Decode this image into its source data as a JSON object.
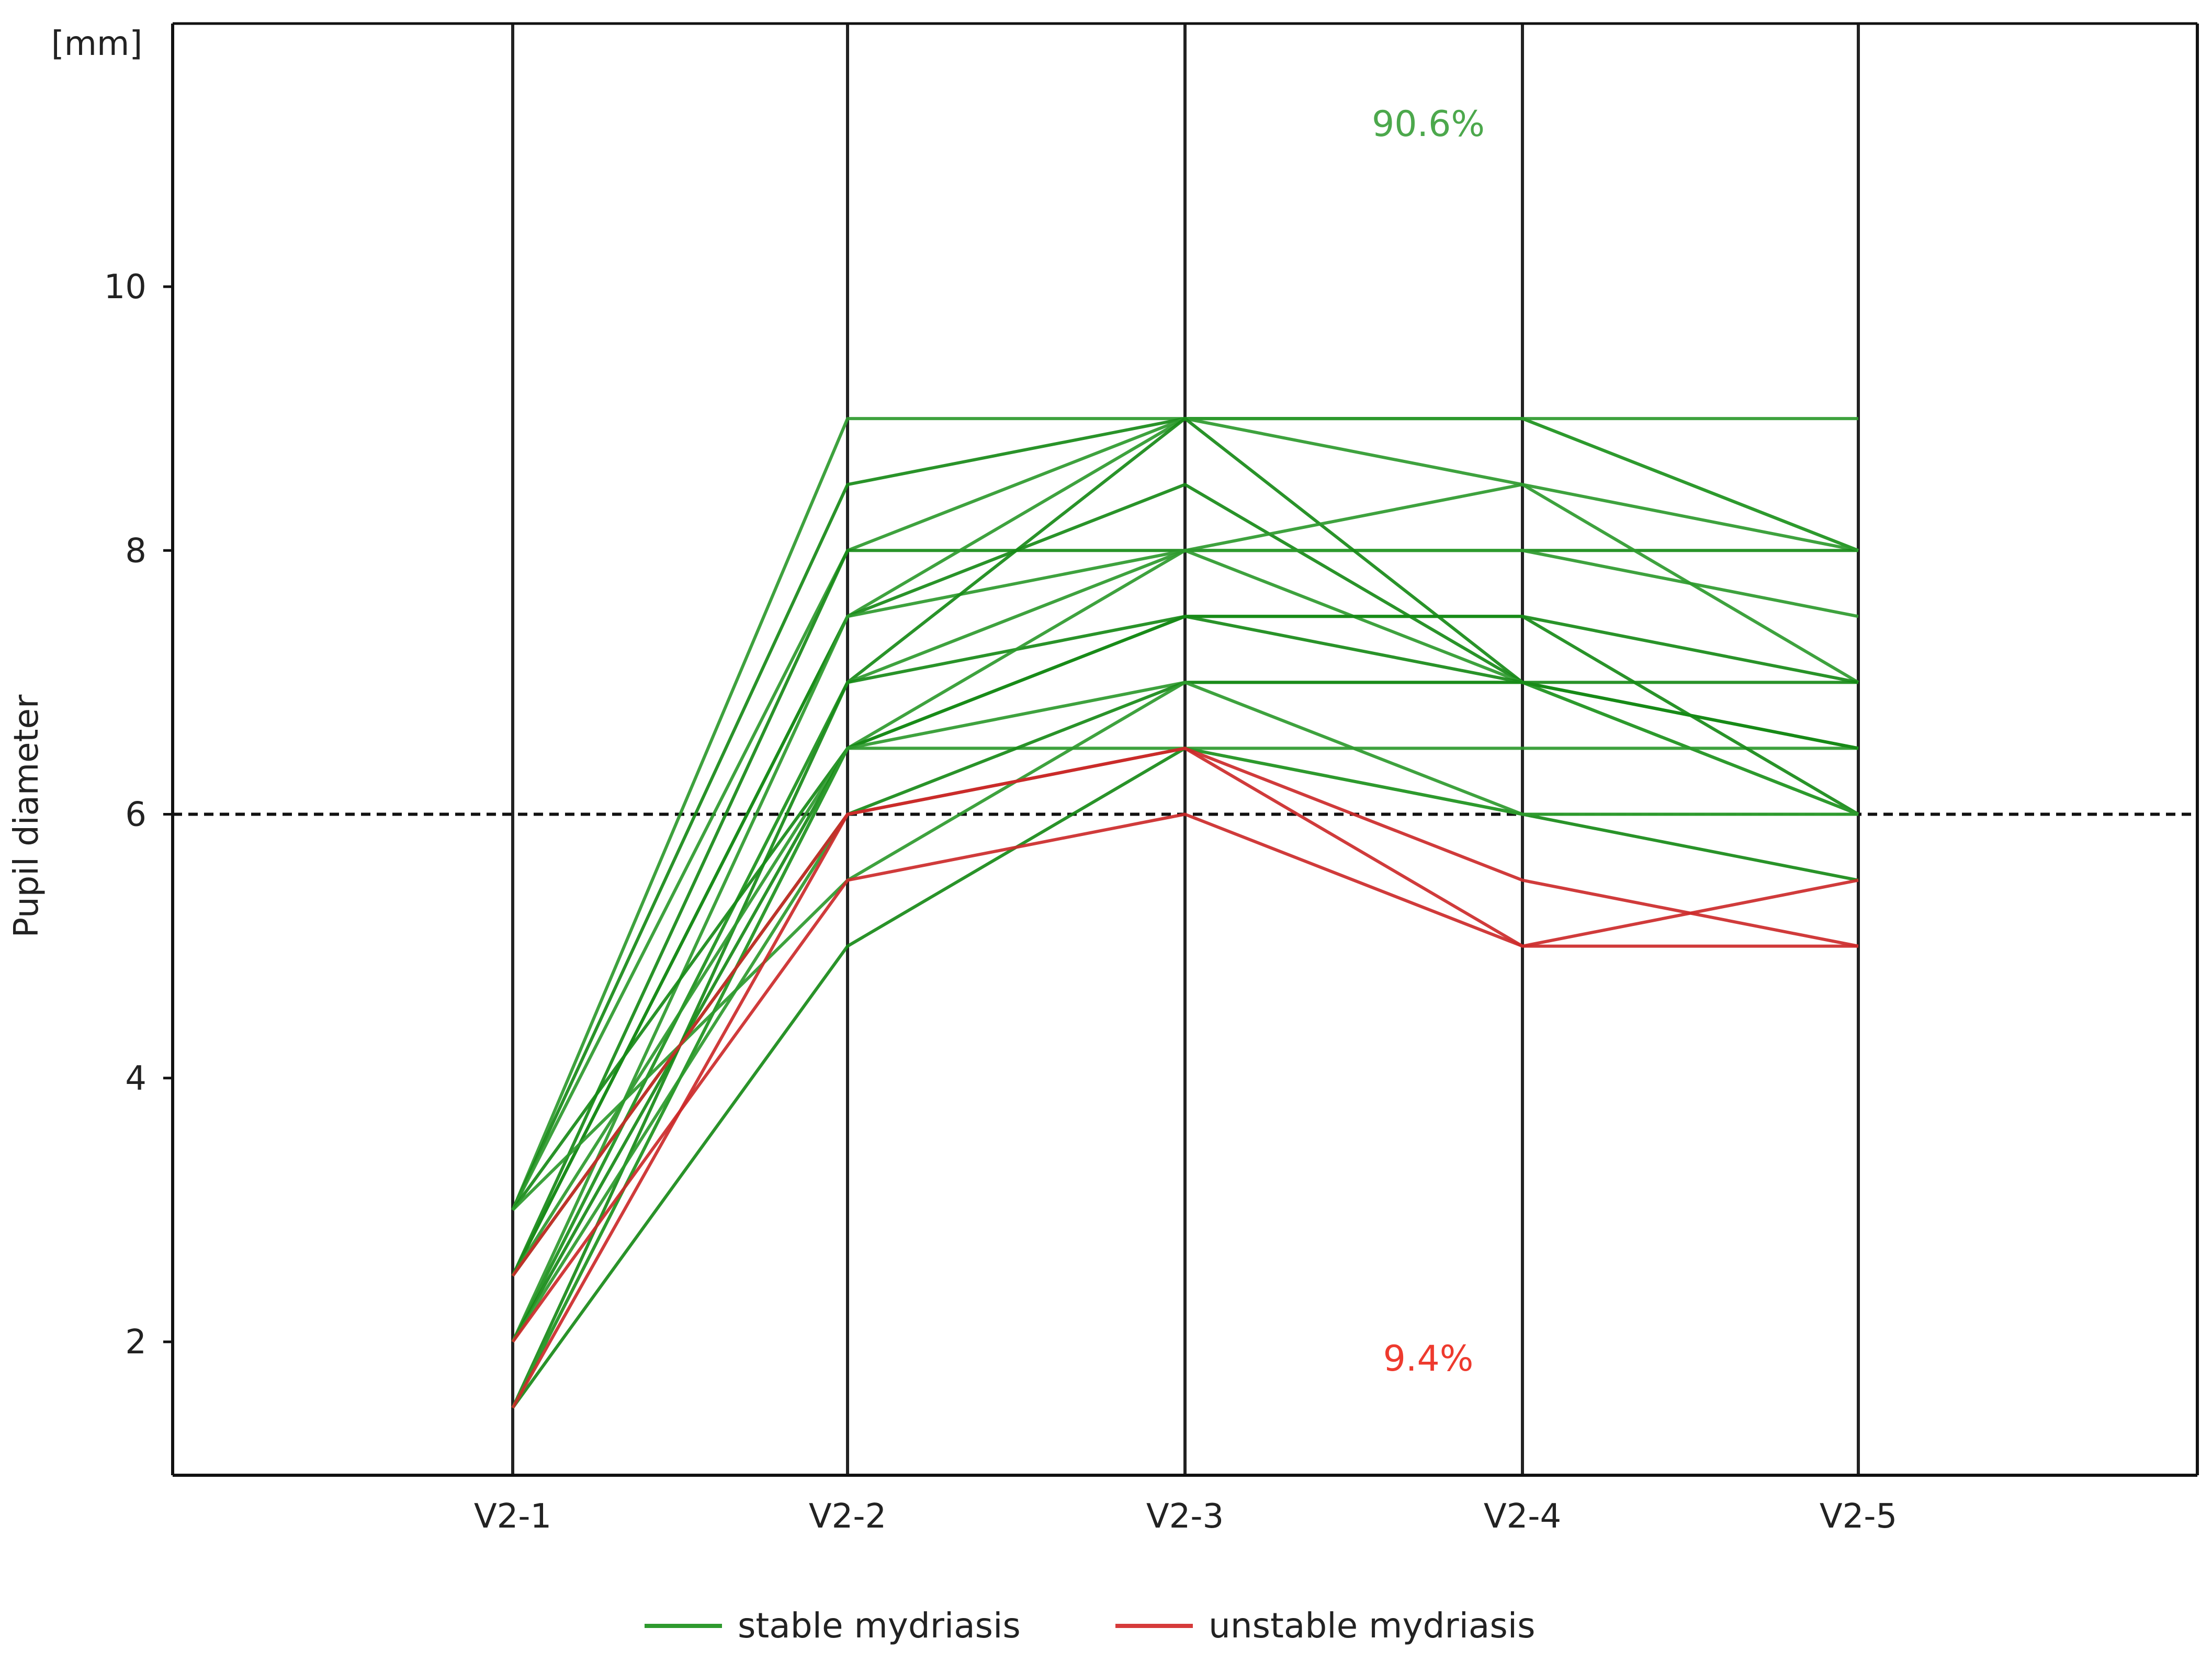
{
  "chart_data": {
    "type": "line",
    "title": "",
    "ylabel": "Pupil diameter",
    "yunit": "[mm]",
    "ylim": [
      1,
      12
    ],
    "yticks": [
      "2",
      "4",
      "6",
      "8",
      "10"
    ],
    "categories": [
      "V2-1",
      "V2-2",
      "V2-3",
      "V2-4",
      "V2-5"
    ],
    "threshold": 6,
    "annotations": {
      "stable_pct": "90.6%",
      "unstable_pct": "9.4%"
    },
    "legend": [
      {
        "label": "stable mydriasis",
        "color": "#2e9a2e"
      },
      {
        "label": "unstable mydriasis",
        "color": "#d63a3a"
      }
    ],
    "colors": {
      "stable": "#2e9a2e",
      "stable_dark": "#178a17",
      "unstable": "#cc2a2a",
      "threshold": "#111111",
      "stable_text": "#4ca84c",
      "unstable_text": "#ee3a2e"
    },
    "series": [
      {
        "group": "stable",
        "values": [
          3,
          9,
          9,
          9,
          9
        ]
      },
      {
        "group": "stable",
        "values": [
          3,
          8.5,
          9,
          9,
          8
        ]
      },
      {
        "group": "stable",
        "values": [
          3,
          8,
          9,
          8.5,
          8
        ]
      },
      {
        "group": "stable",
        "values": [
          2.5,
          8,
          8,
          8,
          8
        ]
      },
      {
        "group": "stable",
        "values": [
          2.5,
          7.5,
          9,
          9,
          8
        ]
      },
      {
        "group": "stable",
        "values": [
          2.5,
          7.5,
          8.5,
          7,
          7
        ]
      },
      {
        "group": "stable",
        "values": [
          2,
          7.5,
          8,
          8,
          7.5
        ]
      },
      {
        "group": "stable",
        "values": [
          2,
          7,
          9,
          7,
          6
        ]
      },
      {
        "group": "stable",
        "values": [
          2,
          7,
          8,
          8.5,
          7
        ]
      },
      {
        "group": "stable",
        "values": [
          1.5,
          7,
          7.5,
          7.5,
          7
        ]
      },
      {
        "group": "stable",
        "values": [
          1.5,
          6.5,
          8,
          7,
          6.5
        ]
      },
      {
        "group": "stable",
        "values": [
          3,
          6.5,
          7.5,
          7,
          6.5
        ]
      },
      {
        "group": "stable",
        "values": [
          2.5,
          6.5,
          6.5,
          6.5,
          6.5
        ]
      },
      {
        "group": "stable",
        "values": [
          2,
          6.5,
          7.5,
          7.5,
          6
        ]
      },
      {
        "group": "stable",
        "values": [
          1.5,
          6.5,
          7,
          7,
          6
        ]
      },
      {
        "group": "stable",
        "values": [
          2.5,
          6,
          7,
          7,
          6.5
        ]
      },
      {
        "group": "stable",
        "values": [
          3,
          5.5,
          7,
          6,
          6
        ]
      },
      {
        "group": "stable",
        "values": [
          1.5,
          5,
          6.5,
          6,
          5.5
        ]
      },
      {
        "group": "stable",
        "values": [
          2,
          6,
          6.5,
          6,
          6
        ]
      },
      {
        "group": "unstable",
        "values": [
          2.5,
          6,
          6.5,
          5,
          5
        ]
      },
      {
        "group": "unstable",
        "values": [
          2,
          5.5,
          6,
          5,
          5.5
        ]
      },
      {
        "group": "unstable",
        "values": [
          1.5,
          6,
          6.5,
          5.5,
          5
        ]
      }
    ]
  }
}
